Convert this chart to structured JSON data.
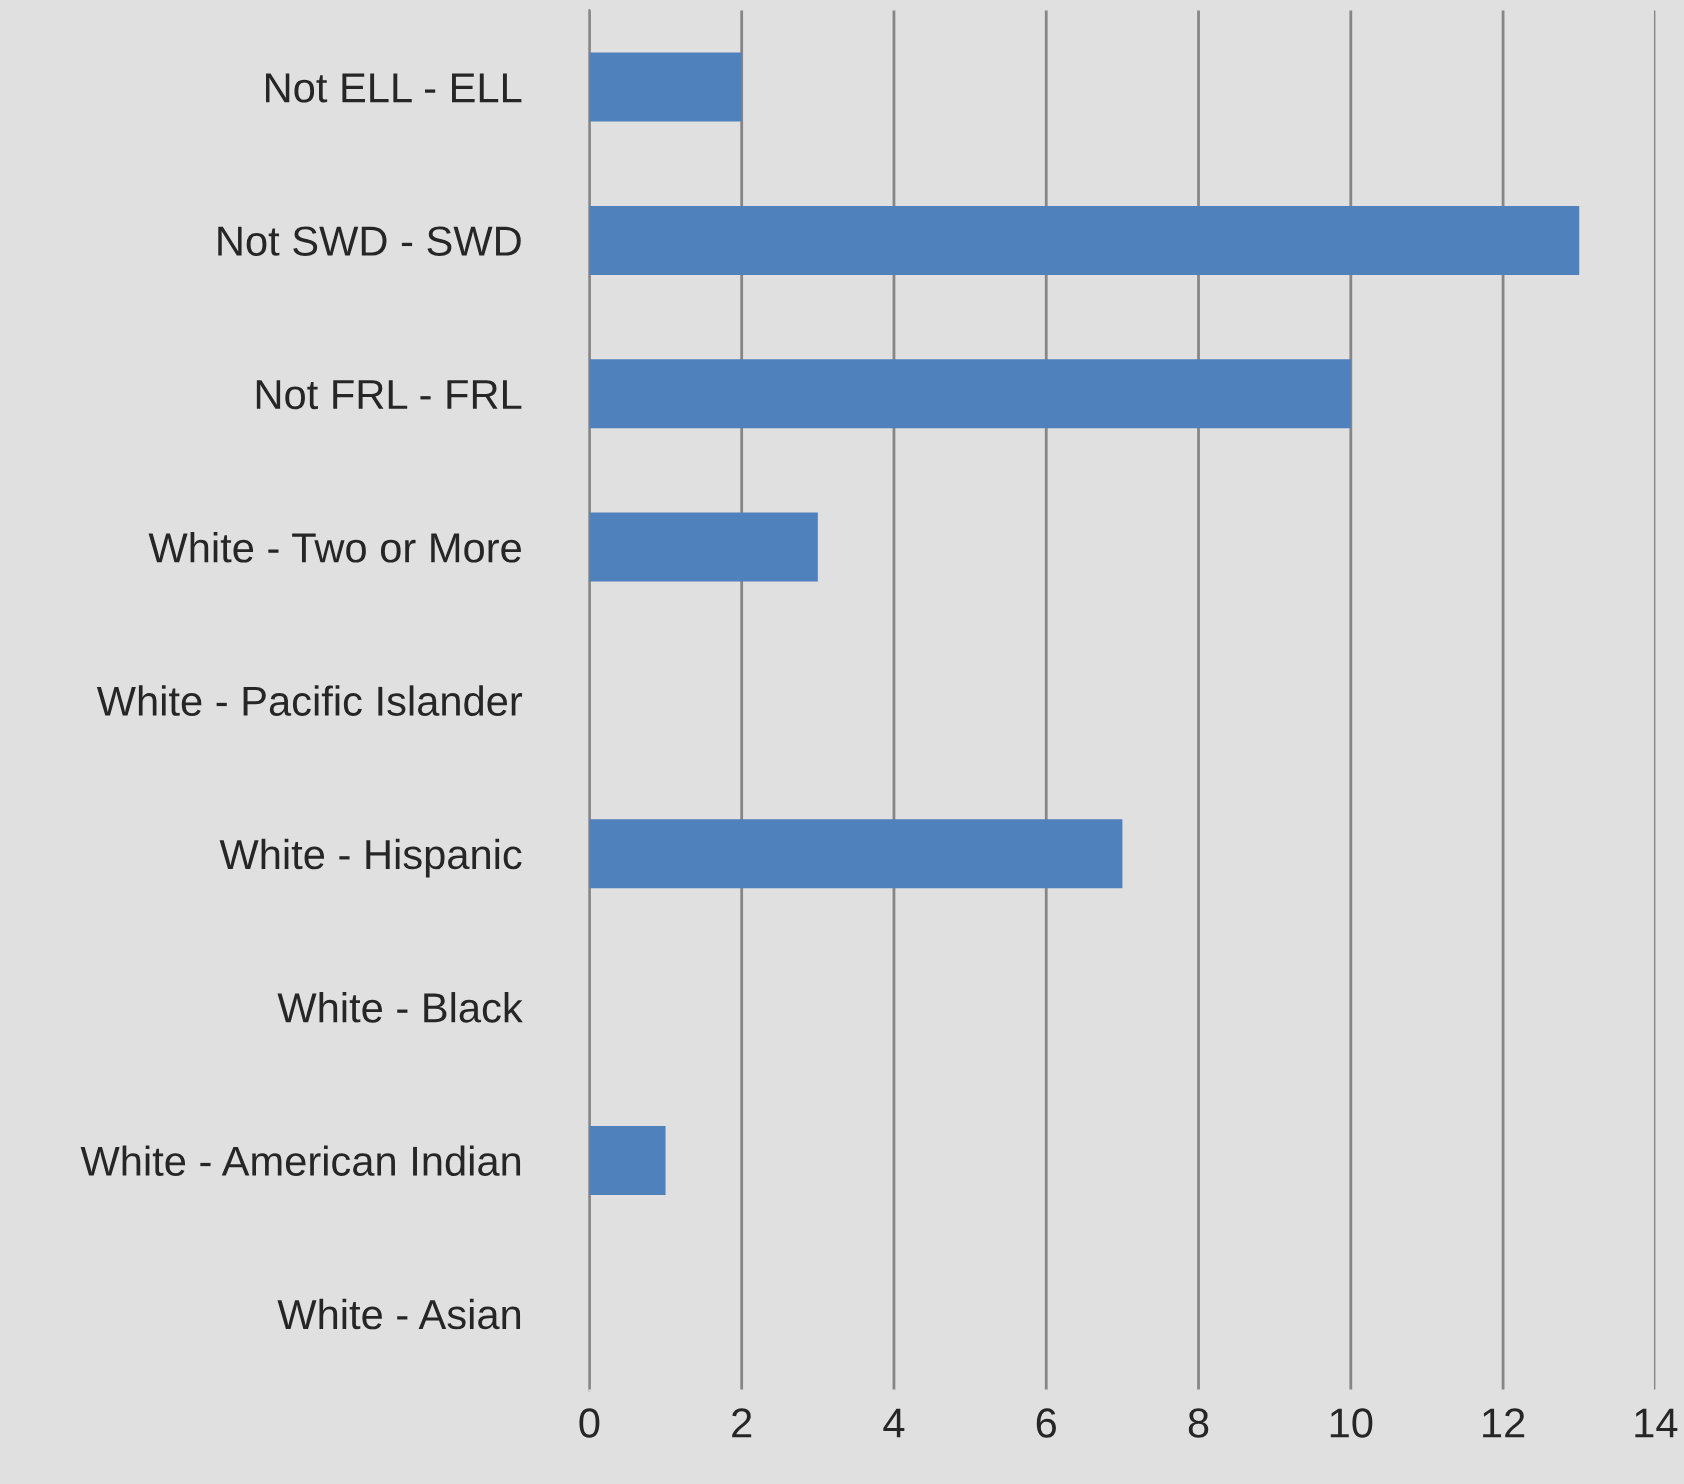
{
  "chart_data": {
    "type": "bar",
    "orientation": "horizontal",
    "categories": [
      "Not ELL - ELL",
      "Not SWD - SWD",
      "Not FRL - FRL",
      "White - Two or More",
      "White - Pacific Islander",
      "White - Hispanic",
      "White - Black",
      "White - American Indian",
      "White - Asian"
    ],
    "values": [
      2,
      13,
      10,
      3,
      0,
      7,
      0,
      1,
      0
    ],
    "color": "#4f81bd",
    "xlim": [
      0,
      14
    ],
    "xticks": [
      0,
      2,
      4,
      6,
      8,
      10,
      12,
      14
    ],
    "grid": "x",
    "legend": false
  }
}
